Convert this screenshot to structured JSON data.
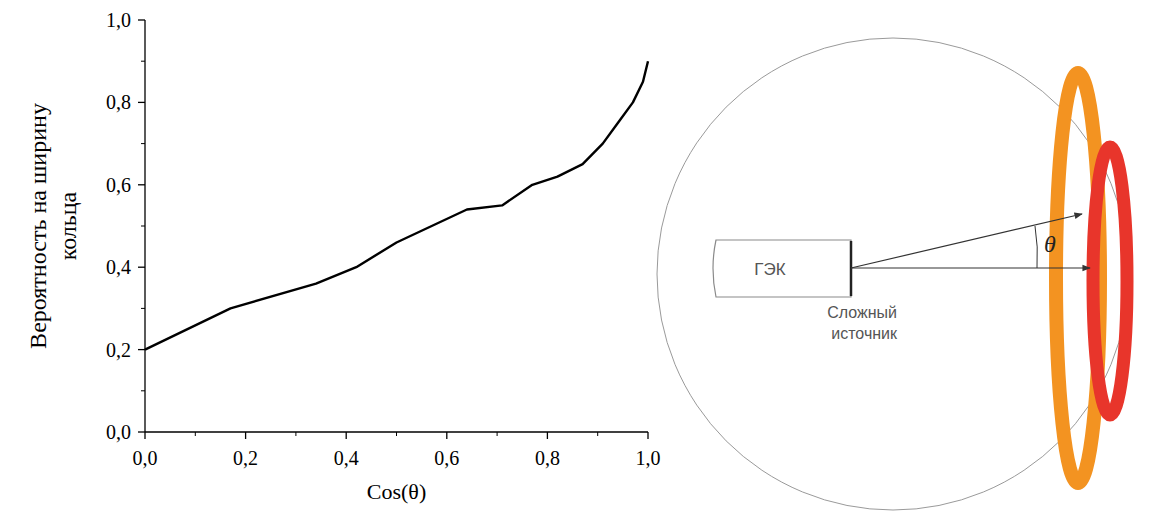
{
  "chart_data": {
    "type": "line",
    "x_label": "Cos(θ)",
    "y_label": "Вероятность на ширину кольца",
    "x": [
      0,
      0.17,
      0.34,
      0.42,
      0.5,
      0.57,
      0.64,
      0.71,
      0.77,
      0.82,
      0.87,
      0.91,
      0.94,
      0.97,
      0.99,
      1.0
    ],
    "values": [
      0.2,
      0.3,
      0.36,
      0.4,
      0.46,
      0.5,
      0.54,
      0.55,
      0.6,
      0.62,
      0.65,
      0.7,
      0.75,
      0.8,
      0.85,
      0.9
    ],
    "color": "#000000",
    "xlim": [
      0,
      1
    ],
    "ylim": [
      0,
      1
    ],
    "xticks": [
      {
        "value": 0,
        "label": "0,0"
      },
      {
        "value": 0.2,
        "label": "0,2"
      },
      {
        "value": 0.4,
        "label": "0,4"
      },
      {
        "value": 0.6,
        "label": "0,6"
      },
      {
        "value": 0.8,
        "label": "0,8"
      },
      {
        "value": 1,
        "label": "1,0"
      }
    ],
    "yticks": [
      {
        "value": 0,
        "label": "0,0"
      },
      {
        "value": 0.2,
        "label": "0,2"
      },
      {
        "value": 0.4,
        "label": "0,4"
      },
      {
        "value": 0.6,
        "label": "0,6"
      },
      {
        "value": 0.8,
        "label": "0,8"
      },
      {
        "value": 1,
        "label": "1,0"
      }
    ],
    "grid": false
  },
  "diagram": {
    "fiber_label": "ГЭК",
    "source_label": "Сложный источник",
    "angle_label": "θ"
  }
}
